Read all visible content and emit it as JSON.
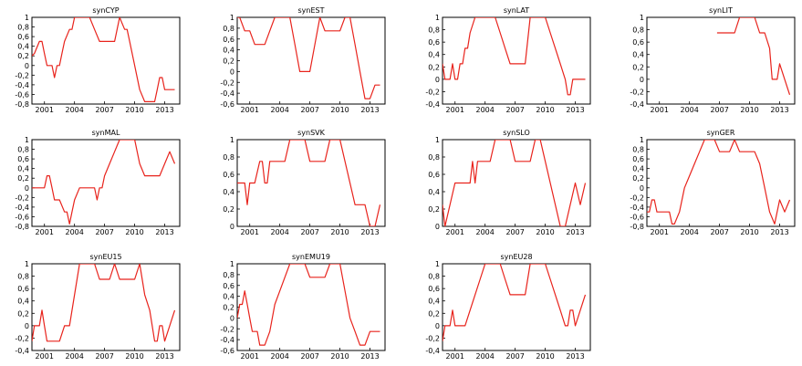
{
  "chart_data": [
    {
      "type": "line",
      "title": "synCYP",
      "xticks": [
        "2001",
        "2004",
        "2007",
        "2010",
        "2013"
      ],
      "xlim": [
        1999.75,
        2014.5
      ],
      "ylim": [
        -0.8,
        1
      ],
      "yticks": [
        "-0,8",
        "-0,6",
        "-0,4",
        "-0,2",
        "0",
        "0,2",
        "0,4",
        "0,6",
        "0,8",
        "1"
      ],
      "x": [
        1999.75,
        2000,
        2000.5,
        2000.75,
        2001,
        2001.25,
        2001.75,
        2002,
        2002.25,
        2002.5,
        2002.75,
        2003,
        2003.5,
        2003.75,
        2004,
        2004.5,
        2005,
        2005.5,
        2006,
        2006.5,
        2007,
        2007.5,
        2008,
        2008.5,
        2009,
        2009.25,
        2009.5,
        2010,
        2010.5,
        2011,
        2011.5,
        2012,
        2012.25,
        2012.5,
        2012.75,
        2013,
        2013.5,
        2014
      ],
      "y": [
        0.2,
        0.25,
        0.5,
        0.5,
        0.25,
        0,
        0,
        -0.25,
        0,
        0,
        0.25,
        0.5,
        0.75,
        0.75,
        1,
        1,
        1,
        1,
        0.75,
        0.5,
        0.5,
        0.5,
        0.5,
        1,
        0.75,
        0.75,
        0.5,
        0,
        -0.5,
        -0.75,
        -0.75,
        -0.75,
        -0.5,
        -0.25,
        -0.25,
        -0.5,
        -0.5,
        -0.5
      ]
    },
    {
      "type": "line",
      "title": "synEST",
      "xticks": [
        "2001",
        "2004",
        "2007",
        "2010",
        "2013"
      ],
      "xlim": [
        1999.75,
        2014.5
      ],
      "ylim": [
        -0.6,
        1
      ],
      "yticks": [
        "-0,6",
        "-0,4",
        "-0,2",
        "0",
        "0,2",
        "0,4",
        "0,6",
        "0,8",
        "1"
      ],
      "x": [
        1999.75,
        2000,
        2000.5,
        2001,
        2001.5,
        2002,
        2002.5,
        2003,
        2003.5,
        2004,
        2004.5,
        2005,
        2005.5,
        2006,
        2006.5,
        2007,
        2007.5,
        2008,
        2008.5,
        2009,
        2009.5,
        2010,
        2010.5,
        2011,
        2011.5,
        2012,
        2012.5,
        2012.75,
        2013,
        2013.5,
        2014
      ],
      "y": [
        1,
        1,
        0.75,
        0.75,
        0.5,
        0.5,
        0.5,
        0.75,
        1,
        1,
        1,
        1,
        0.5,
        0,
        0,
        0,
        0.5,
        1,
        0.75,
        0.75,
        0.75,
        0.75,
        1,
        1,
        0.5,
        0,
        -0.5,
        -0.5,
        -0.5,
        -0.25,
        -0.25
      ]
    },
    {
      "type": "line",
      "title": "synLAT",
      "xticks": [
        "2001",
        "2004",
        "2007",
        "2010",
        "2013"
      ],
      "xlim": [
        1999.75,
        2014.5
      ],
      "ylim": [
        -0.4,
        1
      ],
      "yticks": [
        "-0,4",
        "-0,2",
        "0",
        "0,2",
        "0,4",
        "0,6",
        "0,8",
        "1"
      ],
      "x": [
        1999.75,
        2000,
        2000.25,
        2000.5,
        2000.75,
        2001,
        2001.25,
        2001.5,
        2001.75,
        2002,
        2002.25,
        2002.5,
        2003,
        2003.5,
        2004,
        2004.5,
        2005,
        2005.5,
        2006,
        2006.5,
        2007,
        2007.5,
        2008,
        2008.5,
        2009,
        2009.5,
        2010,
        2010.5,
        2011,
        2011.5,
        2012,
        2012.25,
        2012.5,
        2012.75,
        2013,
        2013.5,
        2014
      ],
      "y": [
        0.25,
        0,
        0,
        0,
        0.25,
        0,
        0,
        0.25,
        0.25,
        0.5,
        0.5,
        0.75,
        1,
        1,
        1,
        1,
        1,
        0.75,
        0.5,
        0.25,
        0.25,
        0.25,
        0.25,
        1,
        1,
        1,
        1,
        0.75,
        0.5,
        0.25,
        0,
        -0.25,
        -0.25,
        0,
        0,
        0,
        0
      ]
    },
    {
      "type": "line",
      "title": "synLIT",
      "xticks": [
        "2001",
        "2004",
        "2007",
        "2010",
        "2013"
      ],
      "xlim": [
        1999.75,
        2014.5
      ],
      "ylim": [
        -0.4,
        1
      ],
      "yticks": [
        "-0,4",
        "-0,2",
        "0",
        "0,2",
        "0,4",
        "0,6",
        "0,8",
        "1"
      ],
      "x": [
        2006.75,
        2007,
        2007.5,
        2008,
        2008.5,
        2009,
        2009.5,
        2010,
        2010.5,
        2011,
        2011.5,
        2012,
        2012.25,
        2012.5,
        2012.75,
        2013,
        2013.5,
        2014
      ],
      "y": [
        0.75,
        0.75,
        0.75,
        0.75,
        0.75,
        1,
        1,
        1,
        1,
        0.75,
        0.75,
        0.5,
        0,
        0,
        0,
        0.25,
        0,
        -0.25
      ]
    },
    {
      "type": "line",
      "title": "synMAL",
      "xticks": [
        "2001",
        "2004",
        "2007",
        "2010",
        "2013"
      ],
      "xlim": [
        1999.75,
        2014.5
      ],
      "ylim": [
        -0.8,
        1
      ],
      "yticks": [
        "-0,8",
        "-0,6",
        "-0,4",
        "-0,2",
        "0",
        "0,2",
        "0,4",
        "0,6",
        "0,8",
        "1"
      ],
      "x": [
        1999.75,
        2000,
        2000.5,
        2001,
        2001.25,
        2001.5,
        2001.75,
        2002,
        2002.5,
        2003,
        2003.25,
        2003.5,
        2003.75,
        2004,
        2004.5,
        2005,
        2005.5,
        2006,
        2006.25,
        2006.5,
        2006.75,
        2007,
        2007.5,
        2008,
        2008.5,
        2009,
        2009.5,
        2010,
        2010.5,
        2011,
        2011.5,
        2012,
        2012.5,
        2013,
        2013.5,
        2014
      ],
      "y": [
        0,
        0,
        0,
        0,
        0.25,
        0.25,
        0,
        -0.25,
        -0.25,
        -0.5,
        -0.5,
        -0.75,
        -0.5,
        -0.25,
        0,
        0,
        0,
        0,
        -0.25,
        0,
        0,
        0.25,
        0.5,
        0.75,
        1,
        1,
        1,
        1,
        0.5,
        0.25,
        0.25,
        0.25,
        0.25,
        0.5,
        0.75,
        0.5
      ]
    },
    {
      "type": "line",
      "title": "synSVK",
      "xticks": [
        "2001",
        "2004",
        "2007",
        "2010",
        "2013"
      ],
      "xlim": [
        1999.75,
        2014.5
      ],
      "ylim": [
        0,
        1
      ],
      "yticks": [
        "0",
        "0,2",
        "0,4",
        "0,6",
        "0,8",
        "1"
      ],
      "x": [
        1999.75,
        2000,
        2000.5,
        2000.75,
        2001,
        2001.5,
        2002,
        2002.25,
        2002.5,
        2002.75,
        2003,
        2003.5,
        2004,
        2004.5,
        2005,
        2005.5,
        2006,
        2006.5,
        2007,
        2007.5,
        2008,
        2008.5,
        2009,
        2009.5,
        2010,
        2010.5,
        2011,
        2011.5,
        2012,
        2012.5,
        2013,
        2013.5,
        2014
      ],
      "y": [
        0.5,
        0.5,
        0.5,
        0.25,
        0.5,
        0.5,
        0.75,
        0.75,
        0.5,
        0.5,
        0.75,
        0.75,
        0.75,
        0.75,
        1,
        1,
        1,
        1,
        0.75,
        0.75,
        0.75,
        0.75,
        1,
        1,
        1,
        0.75,
        0.5,
        0.25,
        0.25,
        0.25,
        0,
        0,
        0.25
      ]
    },
    {
      "type": "line",
      "title": "synSLO",
      "xticks": [
        "2001",
        "2004",
        "2007",
        "2010",
        "2013"
      ],
      "xlim": [
        1999.75,
        2014.5
      ],
      "ylim": [
        0,
        1
      ],
      "yticks": [
        "0",
        "0,2",
        "0,4",
        "0,6",
        "0,8",
        "1"
      ],
      "x": [
        1999.75,
        2000,
        2000.5,
        2001,
        2001.5,
        2002,
        2002.5,
        2002.75,
        2003,
        2003.25,
        2003.5,
        2004,
        2004.5,
        2005,
        2005.5,
        2006,
        2006.5,
        2007,
        2007.5,
        2008,
        2008.5,
        2009,
        2009.5,
        2010,
        2010.5,
        2011,
        2011.5,
        2012,
        2012.5,
        2013,
        2013.5,
        2014
      ],
      "y": [
        0.25,
        0,
        0.25,
        0.5,
        0.5,
        0.5,
        0.5,
        0.75,
        0.5,
        0.75,
        0.75,
        0.75,
        0.75,
        1,
        1,
        1,
        1,
        0.75,
        0.75,
        0.75,
        0.75,
        1,
        1,
        0.75,
        0.5,
        0.25,
        0,
        0,
        0.25,
        0.5,
        0.25,
        0.5
      ]
    },
    {
      "type": "line",
      "title": "synGER",
      "xticks": [
        "2001",
        "2004",
        "2007",
        "2010",
        "2013"
      ],
      "xlim": [
        1999.75,
        2014.5
      ],
      "ylim": [
        -0.8,
        1
      ],
      "yticks": [
        "-0,8",
        "-0,6",
        "-0,4",
        "-0,2",
        "0",
        "0,2",
        "0,4",
        "0,6",
        "0,8",
        "1"
      ],
      "x": [
        1999.75,
        2000,
        2000.25,
        2000.5,
        2000.75,
        2001,
        2001.5,
        2002,
        2002.25,
        2002.5,
        2003,
        2003.5,
        2004,
        2004.5,
        2005,
        2005.5,
        2006,
        2006.5,
        2007,
        2007.5,
        2008,
        2008.5,
        2009,
        2009.5,
        2010,
        2010.5,
        2011,
        2011.5,
        2012,
        2012.5,
        2013,
        2013.5,
        2014
      ],
      "y": [
        -0.5,
        -0.5,
        -0.25,
        -0.25,
        -0.5,
        -0.5,
        -0.5,
        -0.5,
        -0.75,
        -0.75,
        -0.5,
        0,
        0.25,
        0.5,
        0.75,
        1,
        1,
        1,
        0.75,
        0.75,
        0.75,
        1,
        0.75,
        0.75,
        0.75,
        0.75,
        0.5,
        0,
        -0.5,
        -0.75,
        -0.25,
        -0.5,
        -0.25
      ]
    },
    {
      "type": "line",
      "title": "synEU15",
      "xticks": [
        "2001",
        "2004",
        "2007",
        "2010",
        "2013"
      ],
      "xlim": [
        1999.75,
        2014.5
      ],
      "ylim": [
        -0.4,
        1
      ],
      "yticks": [
        "-0,4",
        "-0,2",
        "0",
        "0,2",
        "0,4",
        "0,6",
        "0,8",
        "1"
      ],
      "x": [
        1999.75,
        2000,
        2000.25,
        2000.5,
        2000.75,
        2001,
        2001.25,
        2001.5,
        2002,
        2002.5,
        2003,
        2003.5,
        2004,
        2004.5,
        2005,
        2005.5,
        2006,
        2006.5,
        2007,
        2007.5,
        2008,
        2008.5,
        2009,
        2009.5,
        2010,
        2010.5,
        2011,
        2011.5,
        2012,
        2012.25,
        2012.5,
        2012.75,
        2013,
        2013.5,
        2014
      ],
      "y": [
        -0.25,
        0,
        0,
        0,
        0.25,
        0,
        -0.25,
        -0.25,
        -0.25,
        -0.25,
        0,
        0,
        0.5,
        1,
        1,
        1,
        1,
        0.75,
        0.75,
        0.75,
        1,
        0.75,
        0.75,
        0.75,
        0.75,
        1,
        0.5,
        0.25,
        -0.25,
        -0.25,
        0,
        0,
        -0.25,
        0,
        0.25
      ]
    },
    {
      "type": "line",
      "title": "synEMU19",
      "xticks": [
        "2001",
        "2004",
        "2007",
        "2010",
        "2013"
      ],
      "xlim": [
        1999.75,
        2014.5
      ],
      "ylim": [
        -0.6,
        1
      ],
      "yticks": [
        "-0,6",
        "-0,4",
        "-0,2",
        "0",
        "0,2",
        "0,4",
        "0,6",
        "0,8",
        "1"
      ],
      "x": [
        1999.75,
        2000,
        2000.25,
        2000.5,
        2000.75,
        2001,
        2001.25,
        2001.5,
        2001.75,
        2002,
        2002.5,
        2003,
        2003.5,
        2004,
        2004.5,
        2005,
        2005.5,
        2006,
        2006.5,
        2007,
        2007.5,
        2008,
        2008.5,
        2009,
        2009.5,
        2010,
        2010.5,
        2011,
        2011.5,
        2012,
        2012.5,
        2013,
        2013.5,
        2014
      ],
      "y": [
        0,
        0.25,
        0.25,
        0.5,
        0.25,
        0,
        -0.25,
        -0.25,
        -0.25,
        -0.5,
        -0.5,
        -0.25,
        0.25,
        0.5,
        0.75,
        1,
        1,
        1,
        1,
        0.75,
        0.75,
        0.75,
        0.75,
        1,
        1,
        1,
        0.5,
        0,
        -0.25,
        -0.5,
        -0.5,
        -0.25,
        -0.25,
        -0.25
      ]
    },
    {
      "type": "line",
      "title": "synEU28",
      "xticks": [
        "2001",
        "2004",
        "2007",
        "2010",
        "2013"
      ],
      "xlim": [
        1999.75,
        2014.5
      ],
      "ylim": [
        -0.4,
        1
      ],
      "yticks": [
        "-0,4",
        "-0,2",
        "0",
        "0,2",
        "0,4",
        "0,6",
        "0,8",
        "1"
      ],
      "x": [
        1999.75,
        2000,
        2000.25,
        2000.5,
        2000.75,
        2001,
        2001.25,
        2001.5,
        2002,
        2002.5,
        2003,
        2003.5,
        2004,
        2004.5,
        2005,
        2005.5,
        2006,
        2006.5,
        2007,
        2007.5,
        2008,
        2008.5,
        2009,
        2009.5,
        2010,
        2010.5,
        2011,
        2011.5,
        2012,
        2012.25,
        2012.5,
        2012.75,
        2013,
        2013.5,
        2014
      ],
      "y": [
        -0.25,
        0,
        0,
        0,
        0.25,
        0,
        0,
        0,
        0,
        0.25,
        0.5,
        0.75,
        1,
        1,
        1,
        1,
        0.75,
        0.5,
        0.5,
        0.5,
        0.5,
        1,
        1,
        1,
        1,
        0.75,
        0.5,
        0.25,
        0,
        0,
        0.25,
        0.25,
        0,
        0.25,
        0.5
      ]
    }
  ]
}
